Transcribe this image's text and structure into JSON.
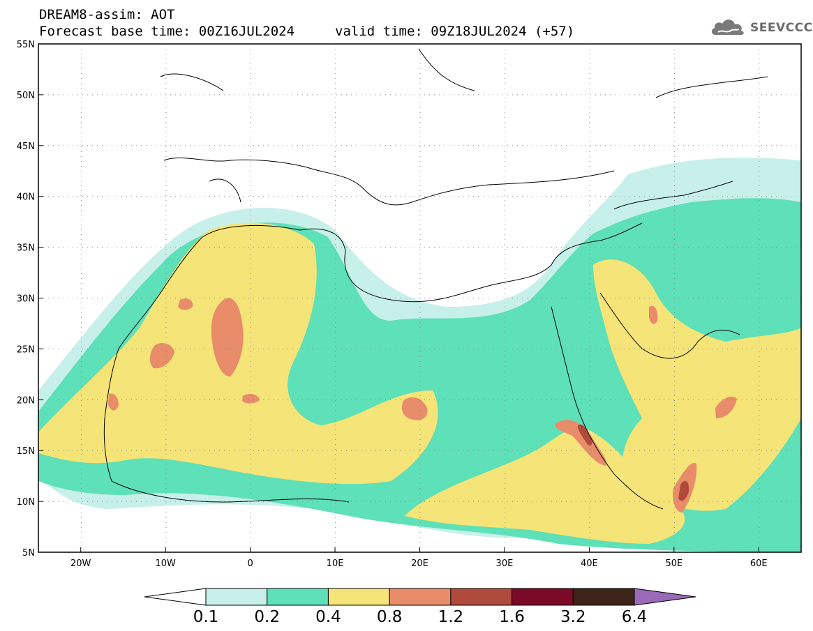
{
  "title": {
    "line1": "DREAM8-assim: AOT",
    "line2": "Forecast base time: 00Z16JUL2024",
    "line3": "valid time: 09Z18JUL2024 (+57)"
  },
  "logo": {
    "text": "SEEVCCC",
    "icon": "cloud-icon"
  },
  "map": {
    "lon_range": [
      -25,
      65
    ],
    "lat_range": [
      5,
      55
    ],
    "lat_ticks": [
      {
        "value": 55,
        "label": "55N"
      },
      {
        "value": 50,
        "label": "50N"
      },
      {
        "value": 45,
        "label": "45N"
      },
      {
        "value": 40,
        "label": "40N"
      },
      {
        "value": 35,
        "label": "35N"
      },
      {
        "value": 30,
        "label": "30N"
      },
      {
        "value": 25,
        "label": "25N"
      },
      {
        "value": 20,
        "label": "20N"
      },
      {
        "value": 15,
        "label": "15N"
      },
      {
        "value": 10,
        "label": "10N"
      },
      {
        "value": 5,
        "label": "5N"
      }
    ],
    "lon_ticks": [
      {
        "value": -20,
        "label": "20W"
      },
      {
        "value": -10,
        "label": "10W"
      },
      {
        "value": 0,
        "label": "0"
      },
      {
        "value": 10,
        "label": "10E"
      },
      {
        "value": 20,
        "label": "20E"
      },
      {
        "value": 30,
        "label": "30E"
      },
      {
        "value": 40,
        "label": "40E"
      },
      {
        "value": 50,
        "label": "50E"
      },
      {
        "value": 60,
        "label": "60E"
      }
    ],
    "grid": "dotted"
  },
  "colorbar": {
    "colors": [
      "#ffffff",
      "#c8f0ea",
      "#5ee0b8",
      "#f5e478",
      "#e88c6a",
      "#b04a3c",
      "#7a0a28",
      "#3c2418",
      "#9a6ab8"
    ],
    "labels": [
      "0.1",
      "0.2",
      "0.4",
      "0.8",
      "1.2",
      "1.6",
      "3.2",
      "6.4"
    ]
  }
}
